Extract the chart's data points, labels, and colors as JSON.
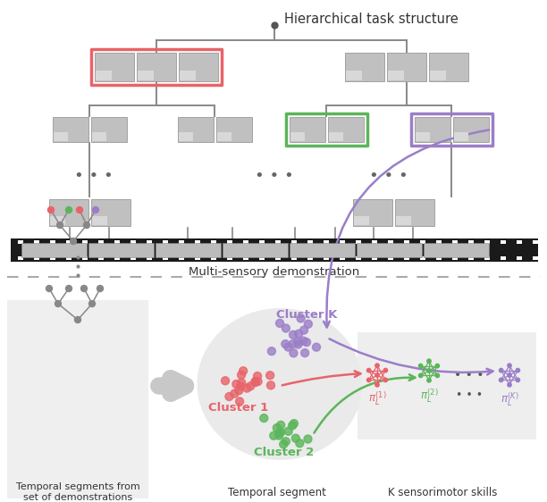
{
  "title_top": "Hierarchical task structure",
  "label_film": "Multi-sensory demonstration",
  "label_temporal": "Temporal segments from\nset of demonstrations",
  "label_temporal_segment": "Temporal segment",
  "label_skills": "K sensorimotor skills",
  "cluster_k_label": "Cluster K",
  "cluster_1_label": "Cluster 1",
  "cluster_2_label": "Cluster 2",
  "color_red": "#E8636A",
  "color_green": "#5BB55A",
  "color_purple": "#9B7EC8",
  "color_gray": "#A0A0A0",
  "color_darkgray": "#555555",
  "color_bg": "#FFFFFF",
  "color_filmstrip": "#1A1A1A",
  "color_box_red": "#E8636A",
  "color_box_green": "#5BB55A",
  "color_box_purple": "#9B7EC8",
  "color_tree": "#888888",
  "color_panel_bg": "#EFEFEF",
  "color_divider": "#AAAAAA"
}
